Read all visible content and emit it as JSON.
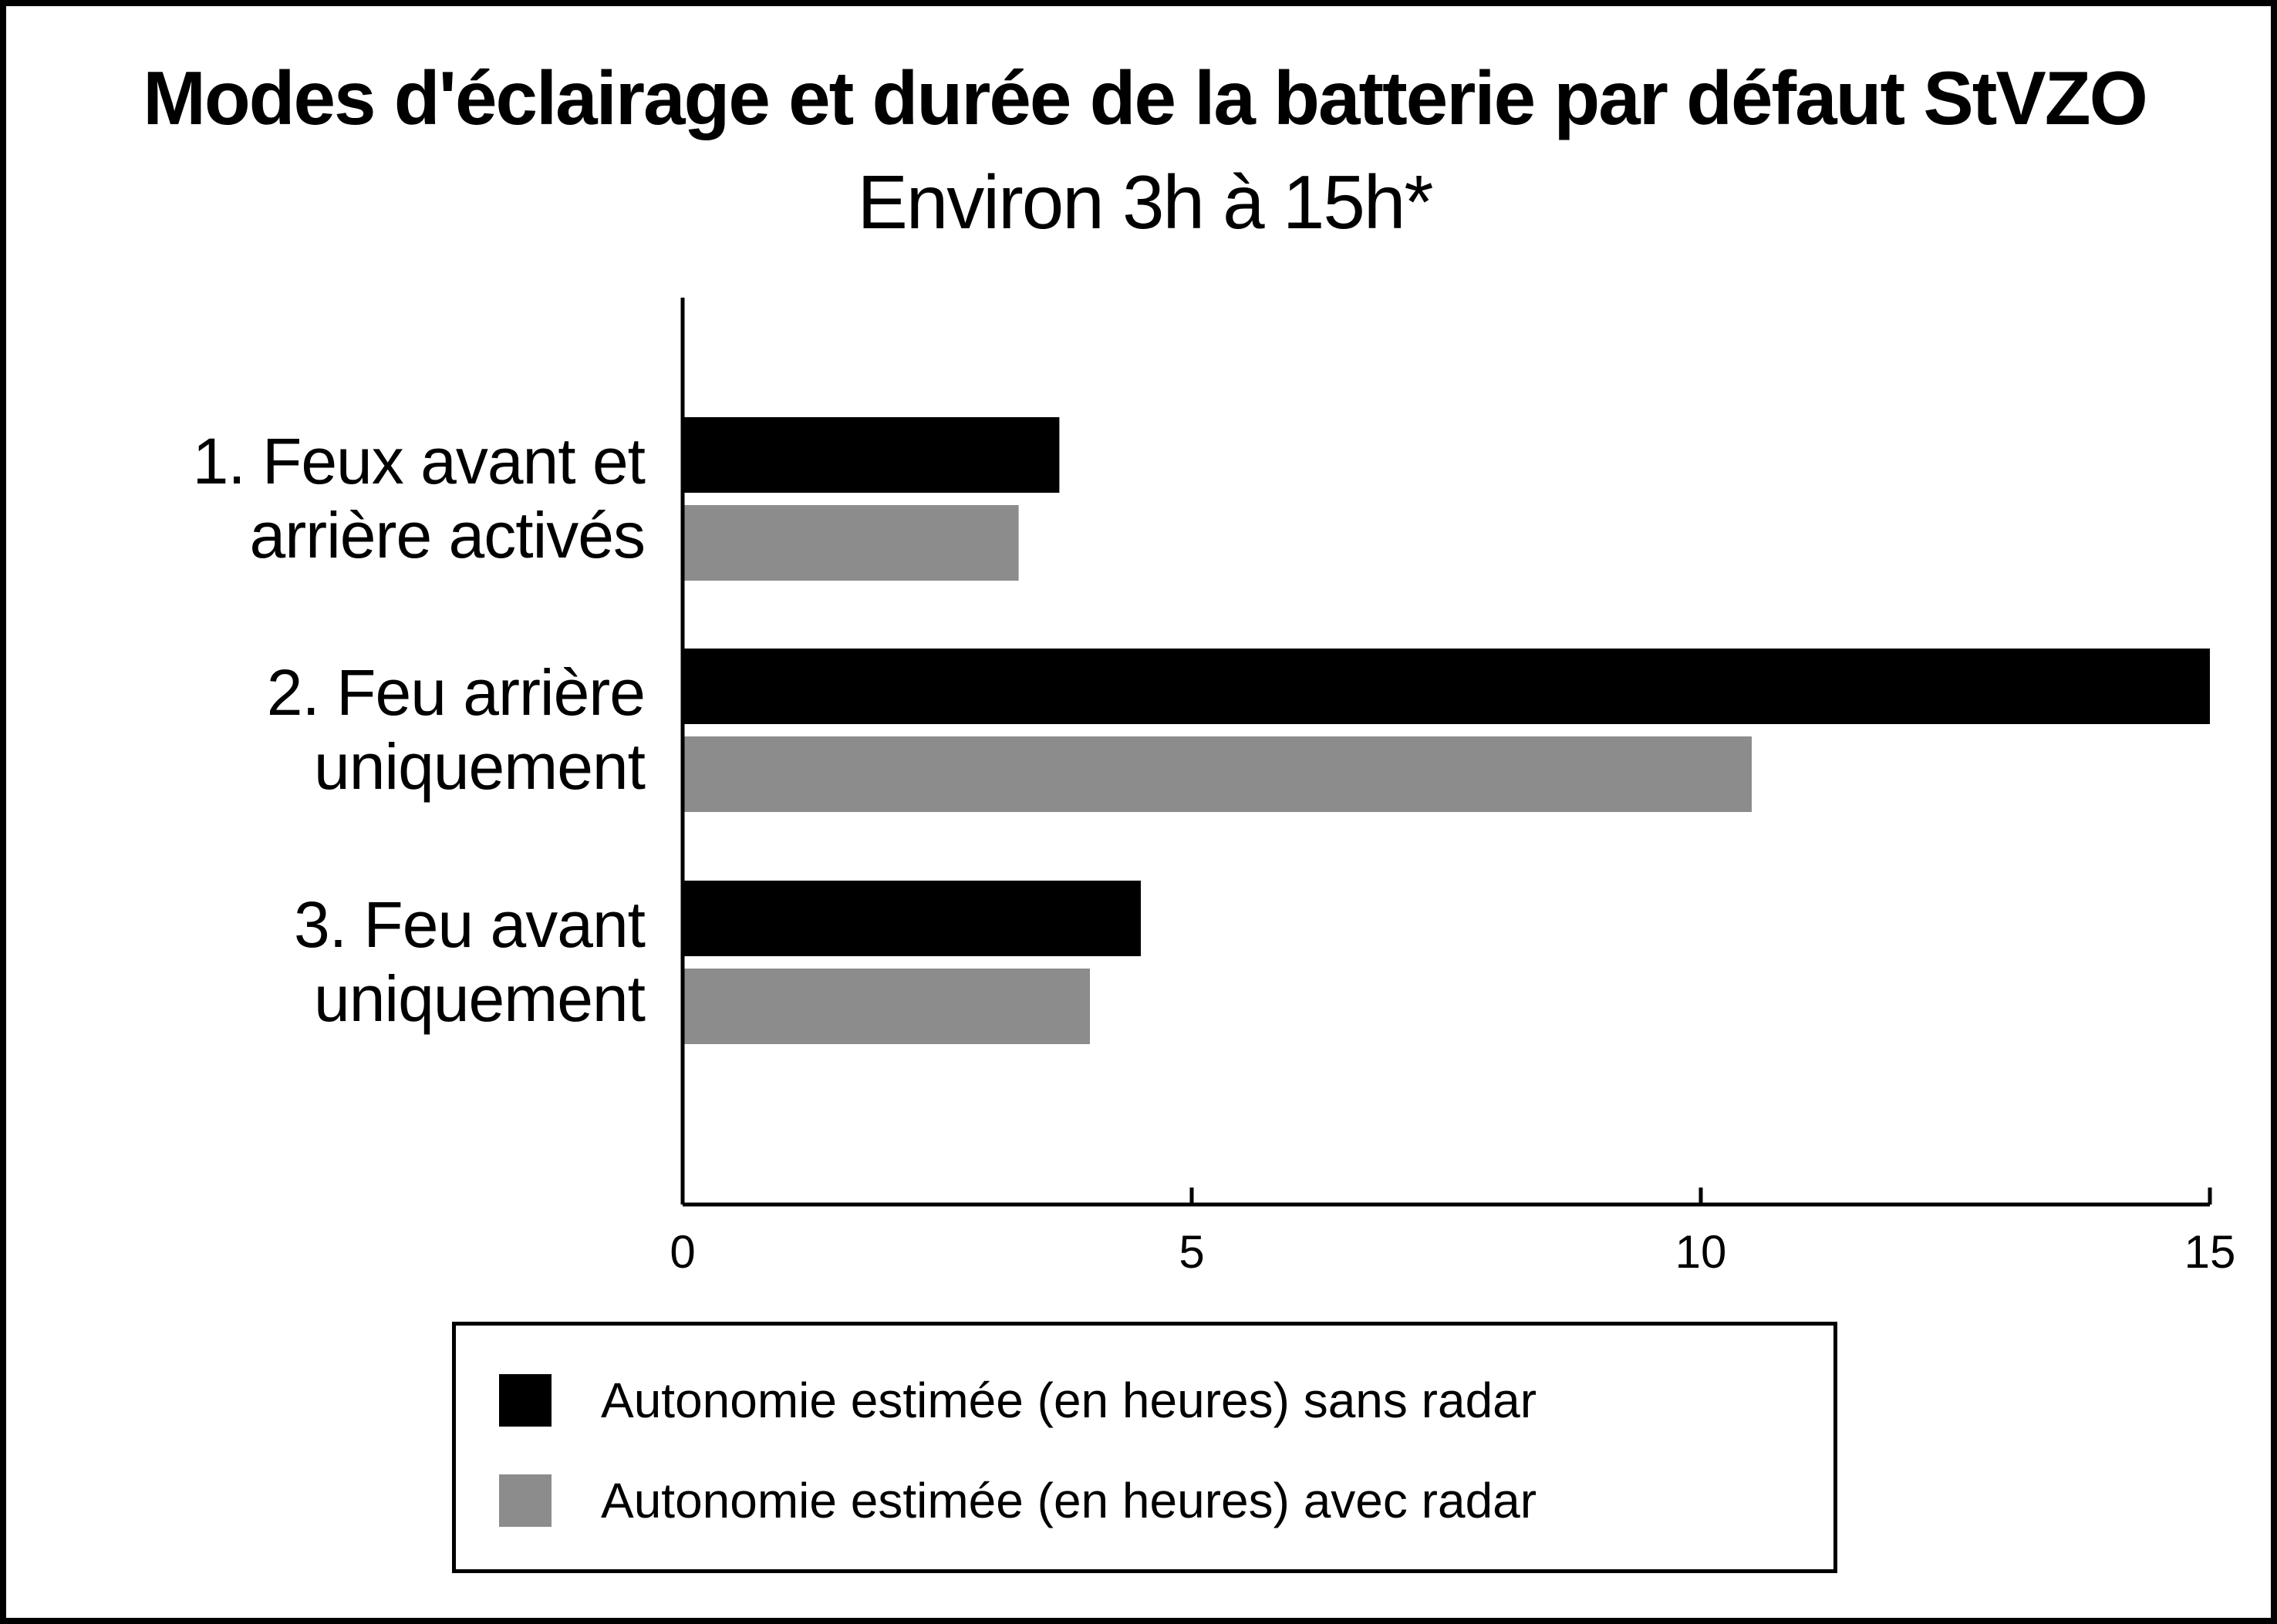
{
  "chart_data": {
    "type": "bar",
    "orientation": "horizontal",
    "title": "Modes d'éclairage et durée de la batterie par défaut StVZO",
    "subtitle": "Environ 3h à 15h*",
    "categories": [
      [
        "1. Feux avant et",
        "arrière activés"
      ],
      [
        "2. Feu arrière",
        "uniquement"
      ],
      [
        "3. Feu avant",
        "uniquement"
      ]
    ],
    "series": [
      {
        "name": "Autonomie estimée (en heures) sans radar",
        "color": "#000000",
        "values": [
          3.7,
          15,
          4.5
        ]
      },
      {
        "name": "Autonomie estimée (en heures) avec radar",
        "color": "#8c8c8c",
        "values": [
          3.3,
          10.5,
          4.0
        ]
      }
    ],
    "xlim": [
      0,
      15
    ],
    "xticks": [
      0,
      5,
      10,
      15
    ],
    "xtick_labels": [
      "0",
      "5",
      "10",
      "15"
    ],
    "xlabel": "",
    "ylabel": "",
    "grid": false,
    "legend_position": "bottom"
  }
}
